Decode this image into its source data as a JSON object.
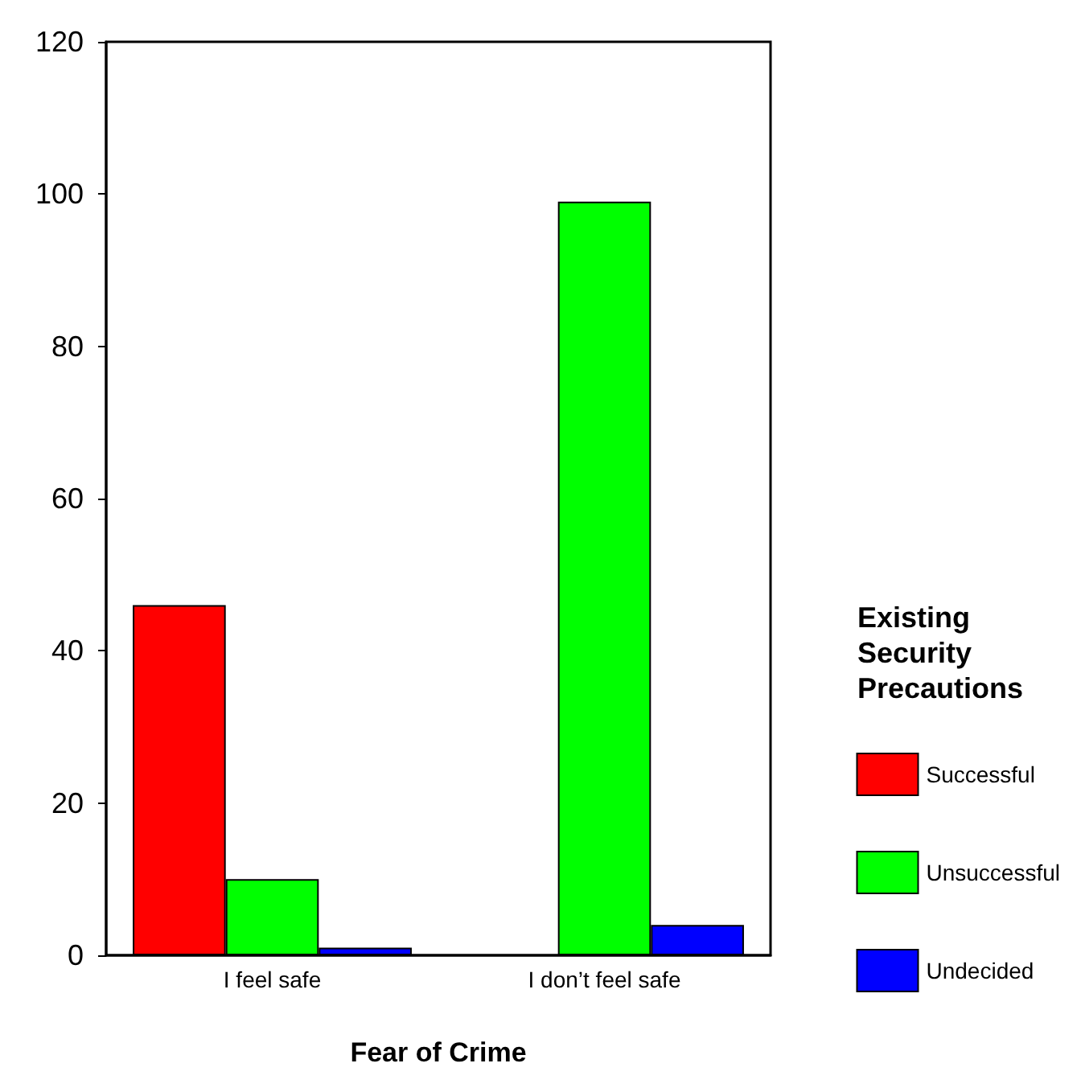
{
  "chart_data": {
    "type": "bar",
    "xlabel": "Fear of Crime",
    "legend_title": "Existing Security Precautions",
    "categories": [
      "I feel safe",
      "I don’t feel safe"
    ],
    "series": [
      {
        "name": "Successful",
        "color": "#ff0000",
        "values": [
          46,
          0
        ]
      },
      {
        "name": "Unsuccessful",
        "color": "#00ff00",
        "values": [
          10,
          99
        ]
      },
      {
        "name": "Undecided",
        "color": "#0000ff",
        "values": [
          1,
          4
        ]
      }
    ],
    "ylim": [
      0,
      120
    ],
    "yticks": [
      0,
      20,
      40,
      60,
      80,
      100,
      120
    ],
    "grid": false,
    "legend": "right"
  }
}
